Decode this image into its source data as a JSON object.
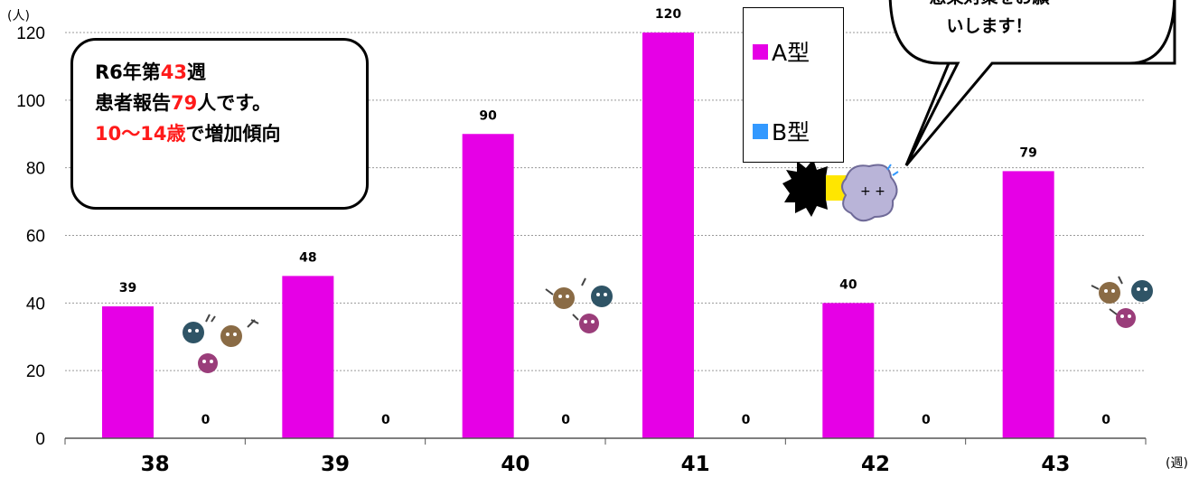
{
  "chart_data": {
    "type": "bar",
    "categories": [
      "38",
      "39",
      "40",
      "41",
      "42",
      "43"
    ],
    "series": [
      {
        "name": "A型",
        "values": [
          39,
          48,
          90,
          120,
          40,
          79
        ],
        "color": "#e600e6"
      },
      {
        "name": "B型",
        "values": [
          0,
          0,
          0,
          0,
          0,
          0
        ],
        "color": "#3399ff"
      }
    ],
    "data_labels_a": [
      "39",
      "48",
      "90",
      "120",
      "40",
      "79"
    ],
    "data_labels_b": [
      "0",
      "0",
      "0",
      "0",
      "0",
      "0"
    ],
    "highlight_label_color": "#ff1a1a",
    "y_unit": "(人)",
    "x_unit": "(週)",
    "ylim": [
      0,
      120
    ],
    "yticks": [
      "0",
      "20",
      "40",
      "60",
      "80",
      "100",
      "120"
    ],
    "grid": "horizontal dotted",
    "legend_position": "top-right"
  },
  "note": {
    "line1_a": "R6年第",
    "line1_b": "43",
    "line1_c": "週",
    "line2_a": "患者報告",
    "line2_b": "79",
    "line2_c": "人です。",
    "line3_a": "10～14歳",
    "line3_b": "で増加傾向"
  },
  "bubble": {
    "line1": "感染対策をお願",
    "line2": "いします！"
  },
  "legend": {
    "a_label": "A型",
    "b_label": "B型"
  },
  "colors": {
    "bar_a": "#e600e6",
    "bar_b": "#3399ff",
    "accent_red": "#ff1a1a"
  }
}
